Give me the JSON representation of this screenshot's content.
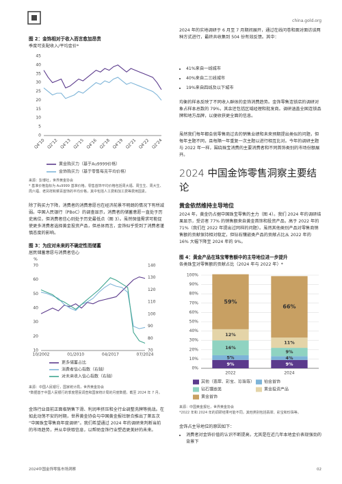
{
  "header": {
    "site": "china.gold.org"
  },
  "left": {
    "paragraphs": [
      "除了购买力下降，消费者的消费意愿也在经济前景不明朗的情况下有所减弱。中国人民银行（PBoC）的调查显示，消费者的储蓄意愿一直处于历史高位，但消费者信心则处于历史最低点（图 3）。虽然保值需求可能促使更多消费者选择黄金投资产品，但总体而言，金饰似乎受到了消费者谨慎态度的影响。",
      "金饰行业目前正面临销售下滑、利润率挤压和全行业调整洗牌等挑战。在如此动荡不安的时期，世界黄金协会与中国黄金报社联合推出了第五次“中国珠宝零售商年度调研”。我们希望通过 2024 年的调研来判断当前的市场趋势，并从中获取信息，以帮助金饰行业塑造更美好的未来。"
    ]
  },
  "right": {
    "intro": "2024 年的实地调研于 6 月至 7 月期间展开，通过在线问卷和面对面访谈两种方式进行，最终共收集到 504 份有效反馈。其中：",
    "bullets": [
      "41%来自一线城市",
      "40%来自二三线城市",
      "19%来自四线及以下城市"
    ],
    "paragraphs": [
      "均衡的样本反映了不同收入群体的金饰消费趋势。金饰零售连锁店的调研对象占样本总数的 79%，其余还包括区域经理和批发商。调研涵盖全国连锁品牌和地方品牌，以便收获更全面的信息。",
      "虽然我们每年都会就零售商过去的销售业绩和未来预期提出类似的问题，但每年主题不同，且每隔一年重复一次主题以进行相互比对。今年的调研主题与 2022 年一样，围绕珠宝消费的主要消费者和不同首饰类别的市场份额展开。"
    ],
    "heading": "2024 中国金饰零售洞察主要结论",
    "subheading": "黄金依然维持主导地位",
    "paragraph3": "2024 年，黄金仍占据中国珠宝零售的主力（图 4）。我们 2024 年的调研结果显示，受访者 77% 的销售额来自黄金首饰和投资产品，高于 2022 年的 71%（我们在 2022 年提出过同样的问题）。虽然其他类别产品对零售商销售额的贡献保持相对稳定，但钻石镶嵌类产品的贡献占比从 2022 年的 16% 大幅下降至 2024 年的 9%。",
    "reasons_intro": "金饰占主导地位的原因如下：",
    "reasons": [
      "消费者对金饰价值的认识不断提高，尤其是在近几年本地金价表现强劲的背景下"
    ]
  },
  "footer": {
    "title": "2024中国金饰零售市场洞察",
    "page": "02"
  },
  "chart_data": [
    {
      "type": "line",
      "title": "图 2：金饰相对于收入而言愈加昂贵",
      "subtitle": "季度可支配收入/平均金价*",
      "categories": [
        "Q4'10",
        null,
        null,
        "Q2'12",
        null,
        null,
        "Q4'13",
        null,
        null,
        "Q2'15",
        null,
        null,
        "Q4'16",
        null,
        null,
        "Q2'18",
        null,
        null,
        "Q4'19",
        null,
        null,
        "Q2'21",
        null,
        null,
        "Q4'22",
        null,
        null,
        "Q2'24"
      ],
      "series": [
        {
          "name": "黄金购买力（基于Au9999价格）",
          "color": "#5b3a8c",
          "values": [
            37,
            33,
            30,
            31,
            32,
            27,
            28,
            30,
            32,
            31,
            33,
            35,
            37,
            36,
            38,
            37,
            39,
            40,
            38,
            36,
            38,
            37,
            36,
            35,
            34,
            33,
            30,
            26
          ]
        },
        {
          "name": "金饰购买力（基于零售每克平均价格）",
          "color": "#7db4d8",
          "values": [
            27,
            25,
            23,
            24,
            24,
            21,
            22,
            23,
            25,
            24,
            26,
            28,
            30,
            29,
            31,
            30,
            32,
            33,
            31,
            29,
            30,
            29,
            28,
            27,
            26,
            25,
            23,
            20
          ]
        }
      ],
      "ylim": [
        0,
        45
      ],
      "yticks": [
        0,
        5,
        10,
        15,
        20,
        25,
        30,
        35,
        40,
        45
      ],
      "grid": false,
      "source": "来源：彭博社，世界黄金协会",
      "note": "* 基准价格指标为 Au9999 基准价格。零售首饰平均价格包括周大福、周生生、周大生、周六福、老凤祥和菜百首饰的平均价格，其中包括人工费和加工费等费用因素。"
    },
    {
      "type": "line",
      "title": "图 3：为应对未来的不确定性而储蓄",
      "subtitle": "居民储蓄意愿与消费者信心",
      "ylabel": "%",
      "categories": [
        "10/2002",
        null,
        null,
        null,
        null,
        null,
        "01/2010",
        null,
        null,
        null,
        null,
        null,
        "04/2017",
        null,
        null,
        null,
        null,
        null,
        "07/2024"
      ],
      "series": [
        {
          "name": "更多储蓄占比",
          "color": "#5b3a8c",
          "values": [
            36,
            38,
            40,
            38,
            42,
            41,
            43,
            40,
            44,
            43,
            45,
            46,
            47,
            48,
            52,
            56,
            60,
            62,
            61
          ]
        },
        {
          "name": "消费者信心指数（右轴）",
          "color": "#7db4d8",
          "axis": "y2",
          "values": [
            118,
            117,
            115,
            113,
            108,
            105,
            103,
            108,
            110,
            113,
            118,
            122,
            125,
            123,
            122,
            118,
            90,
            88,
            89
          ]
        },
        {
          "name": "对未来收入信心指数（右轴）",
          "color": "#3fa58f",
          "axis": "y2",
          "values": [
            120,
            118,
            116,
            112,
            110,
            107,
            104,
            108,
            112,
            116,
            120,
            125,
            130,
            128,
            125,
            122,
            85,
            78,
            76
          ]
        }
      ],
      "ylim": [
        10,
        70
      ],
      "yticks": [
        10,
        20,
        30,
        40,
        50,
        60,
        70
      ],
      "y2lim": [
        70,
        140
      ],
      "y2ticks": [
        70,
        80,
        90,
        100,
        110,
        120,
        130,
        140
      ],
      "grid": false,
      "source": "来源：中国人民银行，国家统计局，世界黄金协会",
      "note": "*数据基于中国人民银行的季度居民调查和国家统计局的月度数据。截至 2024 年 7 月。"
    },
    {
      "type": "bar",
      "stacked": true,
      "title": "图 4：黄金产品在珠宝零售额中的主导地位进一步提升",
      "subtitle": "各类珠宝对零售额的贡献占比（2024 年与 2022 年）*",
      "categories": [
        "2022",
        "2024"
      ],
      "series": [
        {
          "name": "其他（翡翠、彩宝、珍珠等）",
          "color": "#5b3a8c",
          "values": [
            9,
            9
          ],
          "value_labels": [
            "9%",
            "9%"
          ]
        },
        {
          "name": "铂金首饰",
          "color": "#7db4d8",
          "values": [
            5,
            4
          ],
          "value_labels": [
            "5%",
            "4%"
          ]
        },
        {
          "name": "钻石镶嵌类",
          "color": "#8fd3c1",
          "values": [
            16,
            9
          ],
          "value_labels": [
            "16%",
            "9%"
          ]
        },
        {
          "name": "黄金投资产品",
          "color": "#e4d4a8",
          "values": [
            12,
            11
          ],
          "value_labels": [
            "12%",
            "11%"
          ]
        },
        {
          "name": "黄金首饰",
          "color": "#c8a063",
          "values": [
            59,
            66
          ],
          "value_labels": [
            "59%",
            "66%"
          ]
        }
      ],
      "ylim": [
        0,
        100
      ],
      "yticks": [
        {
          "value": 0,
          "label": "0%"
        },
        {
          "value": 10,
          "label": "10%"
        },
        {
          "value": 20,
          "label": "20%"
        },
        {
          "value": 30,
          "label": "30%"
        },
        {
          "value": 40,
          "label": "40%"
        },
        {
          "value": 50,
          "label": "50%"
        },
        {
          "value": 60,
          "label": "60%"
        },
        {
          "value": 70,
          "label": "70%"
        },
        {
          "value": 80,
          "label": "80%"
        },
        {
          "value": 90,
          "label": "90%"
        },
        {
          "value": 100,
          "label": "100%"
        }
      ],
      "grid": true,
      "source": "来源：中国黄金报社，世界黄金协会",
      "note": "*2022 年和 2024 年的调研结果可能不同，其他类别包括翡翠、彩宝和珍珠等。"
    }
  ]
}
